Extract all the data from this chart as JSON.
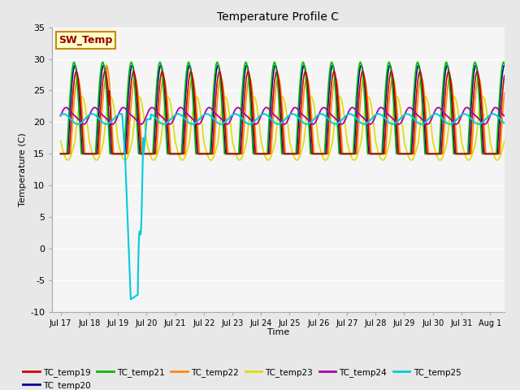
{
  "title": "Temperature Profile C",
  "xlabel": "Time",
  "ylabel": "Temperature (C)",
  "ylim": [
    -10,
    35
  ],
  "bg_color": "#e8e8e8",
  "plot_bg_color": "#f5f5f5",
  "colors": {
    "TC_temp19": "#cc0000",
    "TC_temp20": "#000099",
    "TC_temp21": "#00bb00",
    "TC_temp22": "#ff8800",
    "TC_temp23": "#dddd00",
    "TC_temp24": "#aa00aa",
    "TC_temp25": "#00ccdd"
  },
  "xtick_labels": [
    "Jul 17",
    "Jul 18",
    "Jul 19",
    "Jul 20",
    "Jul 21",
    "Jul 22",
    "Jul 23",
    "Jul 24",
    "Jul 25",
    "Jul 26",
    "Jul 27",
    "Jul 28",
    "Jul 29",
    "Jul 30",
    "Jul 31",
    "Aug 1"
  ],
  "ytick_values": [
    -10,
    -5,
    0,
    5,
    10,
    15,
    20,
    25,
    30,
    35
  ],
  "sw_temp_label": "SW_Temp",
  "sw_temp_color": "#990000",
  "sw_temp_bg": "#ffffcc",
  "sw_temp_border": "#cc8800"
}
